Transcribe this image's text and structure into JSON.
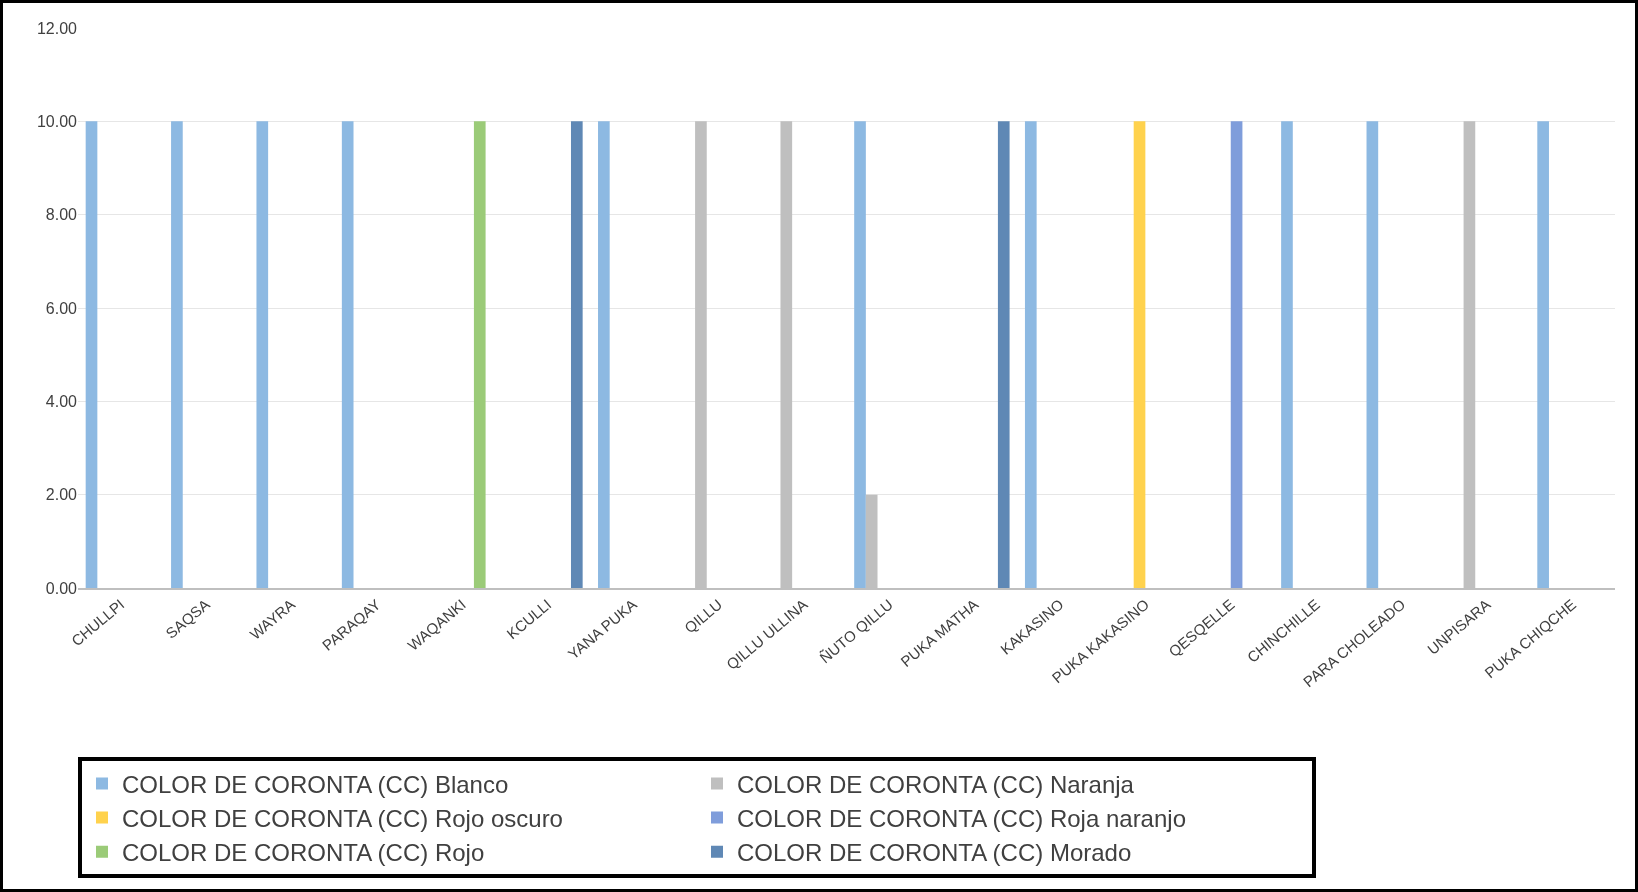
{
  "chart_data": {
    "type": "bar",
    "categories": [
      "CHULLPI",
      "SAQSA",
      "WAYRA",
      "PARAQAY",
      "WAQANKI",
      "KCULLI",
      "YANA PUKA",
      "QILLU",
      "QILLU ULLINA",
      "ÑUTO QILLU",
      "PUKA MATHA",
      "KAKASINO",
      "PUKA KAKASINO",
      "QESQELLE",
      "CHINCHILLE",
      "PARA CHOLEADO",
      "UNPISARA",
      "PUKA CHIQCHE"
    ],
    "series": [
      {
        "name": "COLOR DE CORONTA (CC) Blanco",
        "color": "#8db9e2",
        "values": [
          10,
          10,
          10,
          10,
          null,
          null,
          10,
          null,
          null,
          10,
          null,
          10,
          null,
          null,
          10,
          10,
          null,
          10
        ]
      },
      {
        "name": "COLOR DE CORONTA (CC) Naranja",
        "color": "#bfbfbf",
        "values": [
          null,
          null,
          null,
          null,
          null,
          null,
          null,
          10,
          10,
          2,
          null,
          null,
          null,
          null,
          null,
          null,
          10,
          null
        ]
      },
      {
        "name": "COLOR DE CORONTA (CC) Rojo oscuro",
        "color": "#ffd24d",
        "values": [
          null,
          null,
          null,
          null,
          null,
          null,
          null,
          null,
          null,
          null,
          null,
          null,
          10,
          null,
          null,
          null,
          null,
          null
        ]
      },
      {
        "name": "COLOR DE CORONTA (CC) Roja naranjo",
        "color": "#7f9ddb",
        "values": [
          null,
          null,
          null,
          null,
          null,
          null,
          null,
          null,
          null,
          null,
          null,
          null,
          null,
          10,
          null,
          null,
          null,
          null
        ]
      },
      {
        "name": "COLOR DE CORONTA (CC) Rojo",
        "color": "#9bcb78",
        "values": [
          null,
          null,
          null,
          null,
          10,
          null,
          null,
          null,
          null,
          null,
          null,
          null,
          null,
          null,
          null,
          null,
          null,
          null
        ]
      },
      {
        "name": "COLOR DE CORONTA (CC) Morado",
        "color": "#5f88b5",
        "values": [
          null,
          null,
          null,
          null,
          null,
          10,
          null,
          null,
          null,
          null,
          10,
          null,
          null,
          null,
          null,
          null,
          null,
          null
        ]
      }
    ],
    "ylim": [
      0,
      12
    ],
    "yticks": [
      {
        "value": 0,
        "label": "0.00"
      },
      {
        "value": 2,
        "label": "2.00"
      },
      {
        "value": 4,
        "label": "4.00"
      },
      {
        "value": 6,
        "label": "6.00"
      },
      {
        "value": 8,
        "label": "8.00"
      },
      {
        "value": 10,
        "label": "10.00"
      },
      {
        "value": 12,
        "label": "12.00"
      }
    ],
    "grid": "y",
    "legend": "bottom left"
  }
}
